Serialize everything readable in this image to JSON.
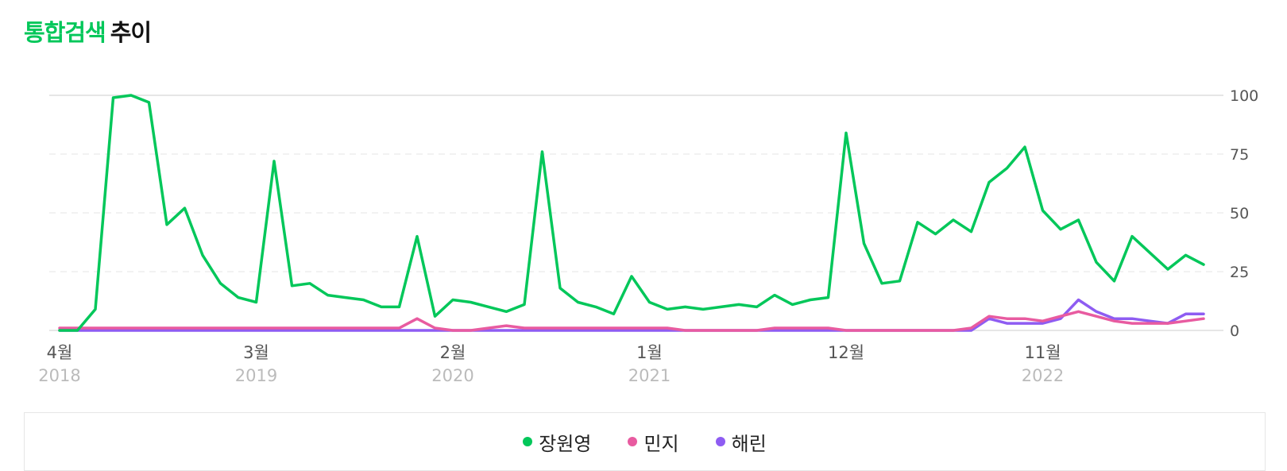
{
  "title": {
    "accent": "통합검색",
    "rest": "추이"
  },
  "chart_data": {
    "type": "line",
    "ylim": [
      0,
      100
    ],
    "yticks": [
      "100",
      "75",
      "50",
      "25",
      "0"
    ],
    "x_tick_labels": [
      {
        "month": "4월",
        "year": "2018",
        "index": 0
      },
      {
        "month": "3월",
        "year": "2019",
        "index": 11
      },
      {
        "month": "2월",
        "year": "2020",
        "index": 22
      },
      {
        "month": "1월",
        "year": "2021",
        "index": 33
      },
      {
        "month": "12월",
        "year": "",
        "index": 44
      },
      {
        "month": "11월",
        "year": "2022",
        "index": 55
      }
    ],
    "grid": true,
    "legend_position": "bottom",
    "series": [
      {
        "name": "장원영",
        "color": "#03c75a",
        "values": [
          0,
          0,
          9,
          99,
          100,
          97,
          45,
          52,
          32,
          20,
          14,
          12,
          72,
          19,
          20,
          15,
          14,
          13,
          10,
          10,
          40,
          6,
          13,
          12,
          10,
          8,
          11,
          76,
          18,
          12,
          10,
          7,
          23,
          12,
          9,
          10,
          9,
          10,
          11,
          10,
          15,
          11,
          13,
          14,
          84,
          37,
          20,
          21,
          46,
          41,
          47,
          42,
          63,
          69,
          78,
          51,
          43,
          47,
          29,
          21,
          40,
          33,
          26,
          32,
          28
        ]
      },
      {
        "name": "민지",
        "color": "#e85ba0",
        "values": [
          1,
          1,
          1,
          1,
          1,
          1,
          1,
          1,
          1,
          1,
          1,
          1,
          1,
          1,
          1,
          1,
          1,
          1,
          1,
          1,
          5,
          1,
          0,
          0,
          1,
          2,
          1,
          1,
          1,
          1,
          1,
          1,
          1,
          1,
          1,
          0,
          0,
          0,
          0,
          0,
          1,
          1,
          1,
          1,
          0,
          0,
          0,
          0,
          0,
          0,
          0,
          1,
          6,
          5,
          5,
          4,
          6,
          8,
          6,
          4,
          3,
          3,
          3,
          4,
          5
        ]
      },
      {
        "name": "해린",
        "color": "#8e5cf2",
        "values": [
          0,
          0,
          0,
          0,
          0,
          0,
          0,
          0,
          0,
          0,
          0,
          0,
          0,
          0,
          0,
          0,
          0,
          0,
          0,
          0,
          0,
          0,
          0,
          0,
          0,
          0,
          0,
          0,
          0,
          0,
          0,
          0,
          0,
          0,
          0,
          0,
          0,
          0,
          0,
          0,
          0,
          0,
          0,
          0,
          0,
          0,
          0,
          0,
          0,
          0,
          0,
          0,
          5,
          3,
          3,
          3,
          5,
          13,
          8,
          5,
          5,
          4,
          3,
          7,
          7
        ]
      }
    ]
  }
}
